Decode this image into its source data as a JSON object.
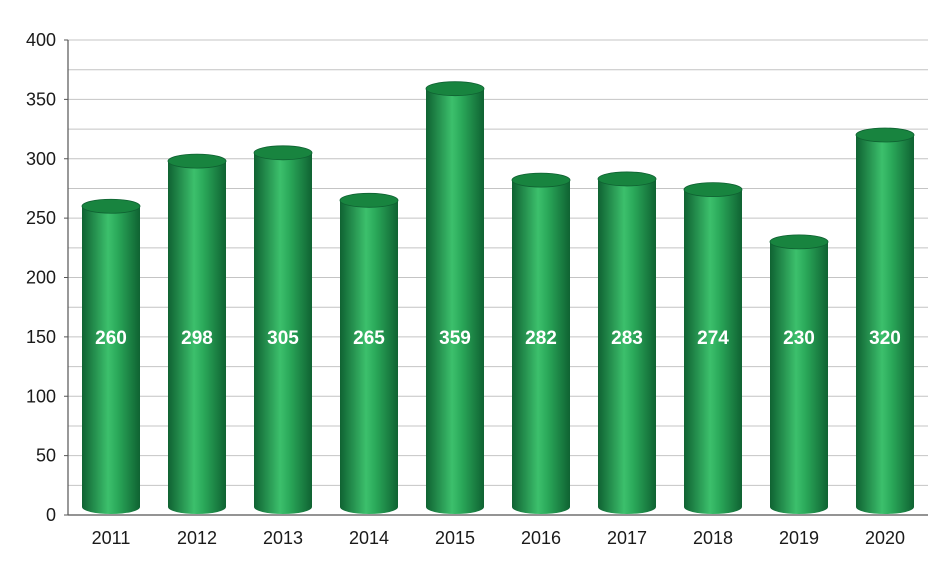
{
  "chart_data": {
    "type": "bar",
    "categories": [
      "2011",
      "2012",
      "2013",
      "2014",
      "2015",
      "2016",
      "2017",
      "2018",
      "2019",
      "2020"
    ],
    "values": [
      260,
      298,
      305,
      265,
      359,
      282,
      283,
      274,
      230,
      320
    ],
    "value_labels": [
      "260",
      "298",
      "305",
      "265",
      "359",
      "282",
      "283",
      "274",
      "230",
      "320"
    ],
    "y_ticks": [
      "0",
      "50",
      "100",
      "150",
      "200",
      "250",
      "300",
      "350",
      "400"
    ],
    "ylim": [
      0,
      400
    ],
    "grid": true,
    "minor_gridlines": true,
    "legend": "none",
    "bar_style": "cylinder",
    "colors": {
      "bar_dark": "#13713a",
      "bar_mid": "#1f9a4e",
      "bar_light": "#3cc06c",
      "bar_top": "#18843f",
      "grid": "#c4c4c4",
      "axis": "#555555"
    }
  }
}
